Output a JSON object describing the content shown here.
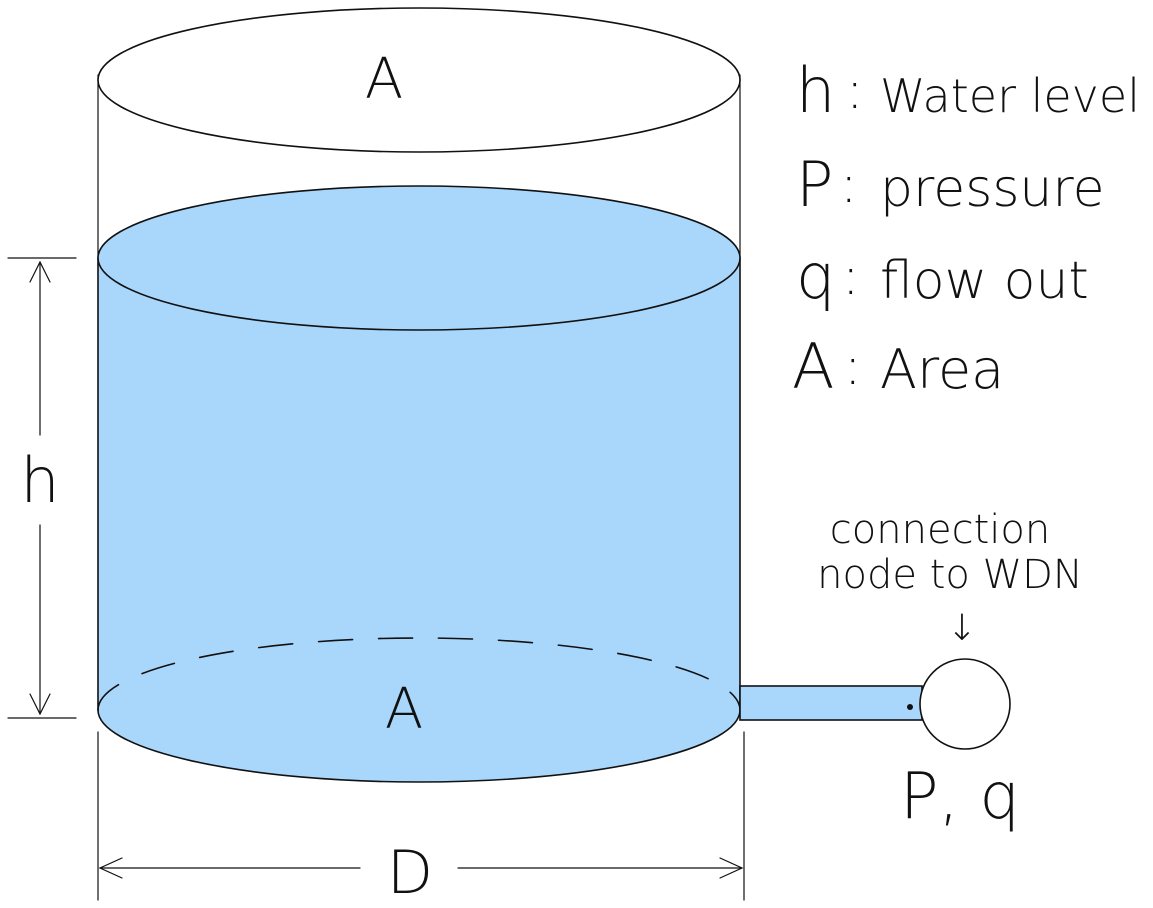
{
  "labels": {
    "top_area": "A",
    "bottom_area": "A",
    "height": "h",
    "diameter": "D",
    "node_values": "P, q",
    "connection_line1": "connection",
    "connection_line2": "node to WDN",
    "arrow_down": "↓"
  },
  "legend": [
    {
      "symbol": "h",
      "separator": ":",
      "text": "Water level"
    },
    {
      "symbol": "P",
      "separator": ":",
      "text": "pressure"
    },
    {
      "symbol": "q",
      "separator": ":",
      "text": "flow out"
    },
    {
      "symbol": "A",
      "separator": ":",
      "text": "Area"
    }
  ],
  "colors": {
    "water": "#a9d6fb",
    "outline": "#111111",
    "background": "#ffffff"
  }
}
